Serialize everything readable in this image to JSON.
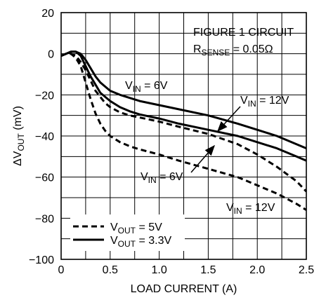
{
  "chart_data": {
    "type": "line",
    "xlabel": "LOAD CURRENT (A)",
    "ylabel": "ΔV",
    "ylabel_sub": "OUT",
    "ylabel_suffix": " (mV)",
    "xlim": [
      0,
      2.5
    ],
    "ylim": [
      -100,
      20
    ],
    "x_ticks": [
      0,
      0.5,
      1.0,
      1.5,
      2.0,
      2.5
    ],
    "x_tick_labels": [
      "0",
      "0.5",
      "1.0",
      "1.5",
      "2.0",
      "2.5"
    ],
    "y_ticks": [
      20,
      0,
      -20,
      -40,
      -60,
      -80,
      -100
    ],
    "y_tick_labels": [
      "20",
      "0",
      "−20",
      "−40",
      "−60",
      "−80",
      "−100"
    ],
    "grid": true,
    "minor_grid_x": 0.25,
    "minor_grid_y": 10,
    "notes": {
      "line1": "FIGURE 1 CIRCUIT",
      "line2_main": "R",
      "line2_sub": "SENSE",
      "line2_rest": " = 0.05Ω"
    },
    "series": [
      {
        "style": "solid",
        "vout": "3.3V",
        "vin": "6V",
        "x": [
          0,
          0.05,
          0.1,
          0.15,
          0.2,
          0.25,
          0.3,
          0.35,
          0.4,
          0.45,
          0.5,
          0.6,
          0.7,
          0.8,
          1.0,
          1.2,
          1.5,
          1.8,
          2.0,
          2.2,
          2.4,
          2.5
        ],
        "values": [
          -1,
          0,
          1,
          1,
          0,
          -3,
          -7,
          -11,
          -14,
          -16,
          -18,
          -20,
          -21.5,
          -23,
          -25,
          -27,
          -30,
          -34,
          -37,
          -40,
          -44,
          -46
        ]
      },
      {
        "style": "solid",
        "vout": "3.3V",
        "vin": "12V",
        "x": [
          0,
          0.05,
          0.1,
          0.15,
          0.2,
          0.25,
          0.3,
          0.35,
          0.4,
          0.5,
          0.6,
          0.7,
          0.8,
          1.0,
          1.2,
          1.5,
          1.8,
          2.0,
          2.2,
          2.4,
          2.5
        ],
        "values": [
          -1,
          0,
          1,
          1,
          -1,
          -6,
          -11,
          -15,
          -19,
          -23,
          -26,
          -28,
          -29.5,
          -31.5,
          -34,
          -37,
          -40,
          -43,
          -46,
          -50,
          -52
        ]
      },
      {
        "style": "dashed",
        "vout": "5V",
        "vin": "6V",
        "x": [
          0,
          0.05,
          0.1,
          0.15,
          0.2,
          0.25,
          0.3,
          0.35,
          0.4,
          0.45,
          0.5,
          0.6,
          0.7,
          0.8,
          1.0,
          1.2,
          1.5,
          1.8,
          2.0,
          2.2,
          2.4,
          2.5
        ],
        "values": [
          -1,
          0,
          0,
          -1,
          -4,
          -8,
          -13,
          -18,
          -21,
          -24,
          -26,
          -28.5,
          -30,
          -31,
          -33,
          -35.5,
          -39,
          -44,
          -49,
          -55,
          -62,
          -67
        ]
      },
      {
        "style": "dashed",
        "vout": "5V",
        "vin": "12V",
        "x": [
          0,
          0.05,
          0.1,
          0.15,
          0.2,
          0.25,
          0.3,
          0.35,
          0.4,
          0.45,
          0.5,
          0.55,
          0.6,
          0.7,
          0.8,
          1.0,
          1.2,
          1.5,
          1.8,
          2.0,
          2.2,
          2.4,
          2.5
        ],
        "values": [
          -1,
          0,
          0,
          -2,
          -6,
          -14,
          -22,
          -29,
          -34,
          -37.5,
          -40,
          -41.5,
          -43,
          -45,
          -46.5,
          -49,
          -52,
          -56,
          -60,
          -64,
          -68,
          -73,
          -76
        ]
      }
    ],
    "labels": [
      {
        "main": "V",
        "sub": "IN",
        "rest": " = 6V",
        "target": "solid-6V"
      },
      {
        "main": "V",
        "sub": "IN",
        "rest": " = 12V",
        "target": "solid-12V"
      },
      {
        "main": "V",
        "sub": "IN",
        "rest": " = 6V",
        "target": "dashed-6V"
      },
      {
        "main": "V",
        "sub": "IN",
        "rest": " = 12V",
        "target": "dashed-12V"
      }
    ],
    "legend": {
      "placement": "bottom-left",
      "entries": [
        {
          "style": "dashed",
          "main": "V",
          "sub": "OUT",
          "rest": " = 5V"
        },
        {
          "style": "solid",
          "main": "V",
          "sub": "OUT",
          "rest": " = 3.3V"
        }
      ]
    }
  }
}
